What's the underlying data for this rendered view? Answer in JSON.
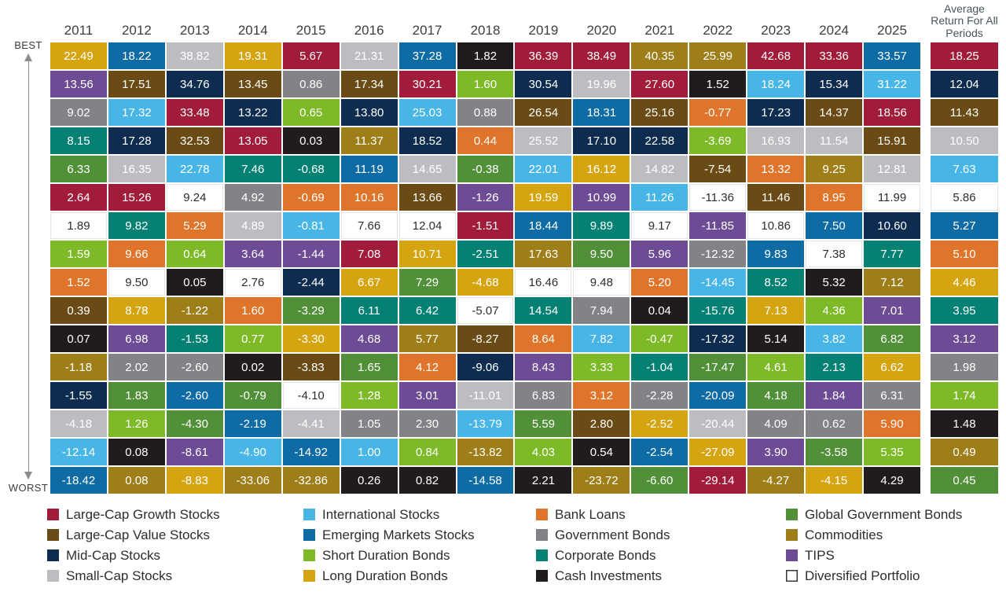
{
  "chart_data": {
    "type": "table",
    "description": "Ranked annual asset class total returns (quilt chart), best to worst, 2011-2025 plus average for all periods",
    "axis": {
      "best": "BEST",
      "worst": "WORST"
    },
    "avg_header": "Average Return For All Periods",
    "asset_classes": {
      "G": {
        "label": "Large-Cap Growth Stocks",
        "color": "#a01c3a"
      },
      "V": {
        "label": "Large-Cap Value Stocks",
        "color": "#6a4a15"
      },
      "M": {
        "label": "Mid-Cap Stocks",
        "color": "#0d2c4f"
      },
      "S": {
        "label": "Small-Cap Stocks",
        "color": "#bcbdc0"
      },
      "I": {
        "label": "International Stocks",
        "color": "#47b6e6"
      },
      "E": {
        "label": "Emerging Markets Stocks",
        "color": "#0f6ba4"
      },
      "SD": {
        "label": "Short Duration Bonds",
        "color": "#7eba27"
      },
      "LD": {
        "label": "Long Duration Bonds",
        "color": "#d4a411"
      },
      "BL": {
        "label": "Bank Loans",
        "color": "#df752a"
      },
      "GB": {
        "label": "Government Bonds",
        "color": "#828386"
      },
      "CB": {
        "label": "Corporate Bonds",
        "color": "#058174"
      },
      "C": {
        "label": "Cash Investments",
        "color": "#201c1d"
      },
      "GG": {
        "label": "Global Government Bonds",
        "color": "#519038"
      },
      "CM": {
        "label": "Commodities",
        "color": "#9d7e18"
      },
      "T": {
        "label": "TIPS",
        "color": "#6e4b95"
      },
      "D": {
        "label": "Diversified Portfolio",
        "color": "#ffffff"
      }
    },
    "columns": [
      {
        "year": "2011",
        "cells": [
          [
            "22.49",
            "LD"
          ],
          [
            "13.56",
            "T"
          ],
          [
            "9.02",
            "GB"
          ],
          [
            "8.15",
            "CB"
          ],
          [
            "6.33",
            "GG"
          ],
          [
            "2.64",
            "G"
          ],
          [
            "1.89",
            "D"
          ],
          [
            "1.59",
            "SD"
          ],
          [
            "1.52",
            "BL"
          ],
          [
            "0.39",
            "V"
          ],
          [
            "0.07",
            "C"
          ],
          [
            "-1.18",
            "CM"
          ],
          [
            "-1.55",
            "M"
          ],
          [
            "-4.18",
            "S"
          ],
          [
            "-12.14",
            "I"
          ],
          [
            "-18.42",
            "E"
          ]
        ]
      },
      {
        "year": "2012",
        "cells": [
          [
            "18.22",
            "E"
          ],
          [
            "17.51",
            "V"
          ],
          [
            "17.32",
            "I"
          ],
          [
            "17.28",
            "M"
          ],
          [
            "16.35",
            "S"
          ],
          [
            "15.26",
            "G"
          ],
          [
            "9.82",
            "CB"
          ],
          [
            "9.66",
            "BL"
          ],
          [
            "9.50",
            "D"
          ],
          [
            "8.78",
            "LD"
          ],
          [
            "6.98",
            "T"
          ],
          [
            "2.02",
            "GB"
          ],
          [
            "1.83",
            "GG"
          ],
          [
            "1.26",
            "SD"
          ],
          [
            "0.08",
            "C"
          ],
          [
            "0.08",
            "CM"
          ]
        ]
      },
      {
        "year": "2013",
        "cells": [
          [
            "38.82",
            "S"
          ],
          [
            "34.76",
            "M"
          ],
          [
            "33.48",
            "G"
          ],
          [
            "32.53",
            "V"
          ],
          [
            "22.78",
            "I"
          ],
          [
            "9.24",
            "D"
          ],
          [
            "5.29",
            "BL"
          ],
          [
            "0.64",
            "SD"
          ],
          [
            "0.05",
            "C"
          ],
          [
            "-1.22",
            "CM"
          ],
          [
            "-1.53",
            "CB"
          ],
          [
            "-2.60",
            "GB"
          ],
          [
            "-2.60",
            "E"
          ],
          [
            "-4.30",
            "GG"
          ],
          [
            "-8.61",
            "T"
          ],
          [
            "-8.83",
            "LD"
          ]
        ]
      },
      {
        "year": "2014",
        "cells": [
          [
            "19.31",
            "LD"
          ],
          [
            "13.45",
            "V"
          ],
          [
            "13.22",
            "M"
          ],
          [
            "13.05",
            "G"
          ],
          [
            "7.46",
            "CB"
          ],
          [
            "4.92",
            "GB"
          ],
          [
            "4.89",
            "S"
          ],
          [
            "3.64",
            "T"
          ],
          [
            "2.76",
            "D"
          ],
          [
            "1.60",
            "BL"
          ],
          [
            "0.77",
            "SD"
          ],
          [
            "0.02",
            "C"
          ],
          [
            "-0.79",
            "GG"
          ],
          [
            "-2.19",
            "E"
          ],
          [
            "-4.90",
            "I"
          ],
          [
            "-33.06",
            "CM"
          ]
        ]
      },
      {
        "year": "2015",
        "cells": [
          [
            "5.67",
            "G"
          ],
          [
            "0.86",
            "GB"
          ],
          [
            "0.65",
            "SD"
          ],
          [
            "0.03",
            "C"
          ],
          [
            "-0.68",
            "CB"
          ],
          [
            "-0.69",
            "BL"
          ],
          [
            "-0.81",
            "I"
          ],
          [
            "-1.44",
            "T"
          ],
          [
            "-2.44",
            "M"
          ],
          [
            "-3.29",
            "GG"
          ],
          [
            "-3.30",
            "LD"
          ],
          [
            "-3.83",
            "V"
          ],
          [
            "-4.10",
            "D"
          ],
          [
            "-4.41",
            "S"
          ],
          [
            "-14.92",
            "E"
          ],
          [
            "-32.86",
            "CM"
          ]
        ]
      },
      {
        "year": "2016",
        "cells": [
          [
            "21.31",
            "S"
          ],
          [
            "17.34",
            "V"
          ],
          [
            "13.80",
            "M"
          ],
          [
            "11.37",
            "CM"
          ],
          [
            "11.19",
            "E"
          ],
          [
            "10.16",
            "BL"
          ],
          [
            "7.66",
            "D"
          ],
          [
            "7.08",
            "G"
          ],
          [
            "6.67",
            "LD"
          ],
          [
            "6.11",
            "CB"
          ],
          [
            "4.68",
            "T"
          ],
          [
            "1.65",
            "GG"
          ],
          [
            "1.28",
            "SD"
          ],
          [
            "1.05",
            "GB"
          ],
          [
            "1.00",
            "I"
          ],
          [
            "0.26",
            "C"
          ]
        ]
      },
      {
        "year": "2017",
        "cells": [
          [
            "37.28",
            "E"
          ],
          [
            "30.21",
            "G"
          ],
          [
            "25.03",
            "I"
          ],
          [
            "18.52",
            "M"
          ],
          [
            "14.65",
            "S"
          ],
          [
            "13.66",
            "V"
          ],
          [
            "12.04",
            "D"
          ],
          [
            "10.71",
            "LD"
          ],
          [
            "7.29",
            "GG"
          ],
          [
            "6.42",
            "CB"
          ],
          [
            "5.77",
            "CM"
          ],
          [
            "4.12",
            "BL"
          ],
          [
            "3.01",
            "T"
          ],
          [
            "2.30",
            "GB"
          ],
          [
            "0.84",
            "SD"
          ],
          [
            "0.82",
            "C"
          ]
        ]
      },
      {
        "year": "2018",
        "cells": [
          [
            "1.82",
            "C"
          ],
          [
            "1.60",
            "SD"
          ],
          [
            "0.88",
            "GB"
          ],
          [
            "0.44",
            "BL"
          ],
          [
            "-0.38",
            "GG"
          ],
          [
            "-1.26",
            "T"
          ],
          [
            "-1.51",
            "G"
          ],
          [
            "-2.51",
            "CB"
          ],
          [
            "-4.68",
            "LD"
          ],
          [
            "-5.07",
            "D"
          ],
          [
            "-8.27",
            "V"
          ],
          [
            "-9.06",
            "M"
          ],
          [
            "-11.01",
            "S"
          ],
          [
            "-13.79",
            "I"
          ],
          [
            "-13.82",
            "CM"
          ],
          [
            "-14.58",
            "E"
          ]
        ]
      },
      {
        "year": "2019",
        "cells": [
          [
            "36.39",
            "G"
          ],
          [
            "30.54",
            "M"
          ],
          [
            "26.54",
            "V"
          ],
          [
            "25.52",
            "S"
          ],
          [
            "22.01",
            "I"
          ],
          [
            "19.59",
            "LD"
          ],
          [
            "18.44",
            "E"
          ],
          [
            "17.63",
            "CM"
          ],
          [
            "16.46",
            "D"
          ],
          [
            "14.54",
            "CB"
          ],
          [
            "8.64",
            "BL"
          ],
          [
            "8.43",
            "T"
          ],
          [
            "6.83",
            "GB"
          ],
          [
            "5.59",
            "GG"
          ],
          [
            "4.03",
            "SD"
          ],
          [
            "2.21",
            "C"
          ]
        ]
      },
      {
        "year": "2020",
        "cells": [
          [
            "38.49",
            "G"
          ],
          [
            "19.96",
            "S"
          ],
          [
            "18.31",
            "E"
          ],
          [
            "17.10",
            "M"
          ],
          [
            "16.12",
            "LD"
          ],
          [
            "10.99",
            "T"
          ],
          [
            "9.89",
            "CB"
          ],
          [
            "9.50",
            "GG"
          ],
          [
            "9.48",
            "D"
          ],
          [
            "7.94",
            "GB"
          ],
          [
            "7.82",
            "I"
          ],
          [
            "3.33",
            "SD"
          ],
          [
            "3.12",
            "BL"
          ],
          [
            "2.80",
            "V"
          ],
          [
            "0.54",
            "C"
          ],
          [
            "-23.72",
            "CM"
          ]
        ]
      },
      {
        "year": "2021",
        "cells": [
          [
            "40.35",
            "CM"
          ],
          [
            "27.60",
            "G"
          ],
          [
            "25.16",
            "V"
          ],
          [
            "22.58",
            "M"
          ],
          [
            "14.82",
            "S"
          ],
          [
            "11.26",
            "I"
          ],
          [
            "9.17",
            "D"
          ],
          [
            "5.96",
            "T"
          ],
          [
            "5.20",
            "BL"
          ],
          [
            "0.04",
            "C"
          ],
          [
            "-0.47",
            "SD"
          ],
          [
            "-1.04",
            "CB"
          ],
          [
            "-2.28",
            "GB"
          ],
          [
            "-2.52",
            "LD"
          ],
          [
            "-2.54",
            "E"
          ],
          [
            "-6.60",
            "GG"
          ]
        ]
      },
      {
        "year": "2022",
        "cells": [
          [
            "25.99",
            "CM"
          ],
          [
            "1.52",
            "C"
          ],
          [
            "-0.77",
            "BL"
          ],
          [
            "-3.69",
            "SD"
          ],
          [
            "-7.54",
            "V"
          ],
          [
            "-11.36",
            "D"
          ],
          [
            "-11.85",
            "T"
          ],
          [
            "-12.32",
            "GB"
          ],
          [
            "-14.45",
            "I"
          ],
          [
            "-15.76",
            "CB"
          ],
          [
            "-17.32",
            "M"
          ],
          [
            "-17.47",
            "GG"
          ],
          [
            "-20.09",
            "E"
          ],
          [
            "-20.44",
            "S"
          ],
          [
            "-27.09",
            "LD"
          ],
          [
            "-29.14",
            "G"
          ]
        ]
      },
      {
        "year": "2023",
        "cells": [
          [
            "42.68",
            "G"
          ],
          [
            "18.24",
            "I"
          ],
          [
            "17.23",
            "M"
          ],
          [
            "16.93",
            "S"
          ],
          [
            "13.32",
            "BL"
          ],
          [
            "11.46",
            "V"
          ],
          [
            "10.86",
            "D"
          ],
          [
            "9.83",
            "E"
          ],
          [
            "8.52",
            "CB"
          ],
          [
            "7.13",
            "LD"
          ],
          [
            "5.14",
            "C"
          ],
          [
            "4.61",
            "SD"
          ],
          [
            "4.18",
            "GG"
          ],
          [
            "4.09",
            "GB"
          ],
          [
            "3.90",
            "T"
          ],
          [
            "-4.27",
            "CM"
          ]
        ]
      },
      {
        "year": "2024",
        "cells": [
          [
            "33.36",
            "G"
          ],
          [
            "15.34",
            "M"
          ],
          [
            "14.37",
            "V"
          ],
          [
            "11.54",
            "S"
          ],
          [
            "9.25",
            "CM"
          ],
          [
            "8.95",
            "BL"
          ],
          [
            "7.50",
            "E"
          ],
          [
            "7.38",
            "D"
          ],
          [
            "5.32",
            "C"
          ],
          [
            "4.36",
            "SD"
          ],
          [
            "3.82",
            "I"
          ],
          [
            "2.13",
            "CB"
          ],
          [
            "1.84",
            "T"
          ],
          [
            "0.62",
            "GB"
          ],
          [
            "-3.58",
            "GG"
          ],
          [
            "-4.15",
            "LD"
          ]
        ]
      },
      {
        "year": "2025",
        "cells": [
          [
            "33.57",
            "E"
          ],
          [
            "31.22",
            "I"
          ],
          [
            "18.56",
            "G"
          ],
          [
            "15.91",
            "V"
          ],
          [
            "12.81",
            "S"
          ],
          [
            "11.99",
            "D"
          ],
          [
            "10.60",
            "M"
          ],
          [
            "7.77",
            "CB"
          ],
          [
            "7.12",
            "CM"
          ],
          [
            "7.01",
            "T"
          ],
          [
            "6.82",
            "GG"
          ],
          [
            "6.62",
            "LD"
          ],
          [
            "6.31",
            "GB"
          ],
          [
            "5.90",
            "BL"
          ],
          [
            "5.35",
            "SD"
          ],
          [
            "4.29",
            "C"
          ]
        ]
      }
    ],
    "average_column": [
      [
        "18.25",
        "G"
      ],
      [
        "12.04",
        "M"
      ],
      [
        "11.43",
        "V"
      ],
      [
        "10.50",
        "S"
      ],
      [
        "7.63",
        "I"
      ],
      [
        "5.86",
        "D"
      ],
      [
        "5.27",
        "E"
      ],
      [
        "5.10",
        "BL"
      ],
      [
        "4.46",
        "LD"
      ],
      [
        "3.95",
        "CB"
      ],
      [
        "3.12",
        "T"
      ],
      [
        "1.98",
        "GB"
      ],
      [
        "1.74",
        "SD"
      ],
      [
        "1.48",
        "C"
      ],
      [
        "0.49",
        "CM"
      ],
      [
        "0.45",
        "GG"
      ]
    ],
    "legend_columns": [
      [
        "G",
        "V",
        "M",
        "S"
      ],
      [
        "I",
        "E",
        "SD",
        "LD"
      ],
      [
        "BL",
        "GB",
        "CB",
        "C"
      ],
      [
        "GG",
        "CM",
        "T",
        "D"
      ]
    ]
  }
}
